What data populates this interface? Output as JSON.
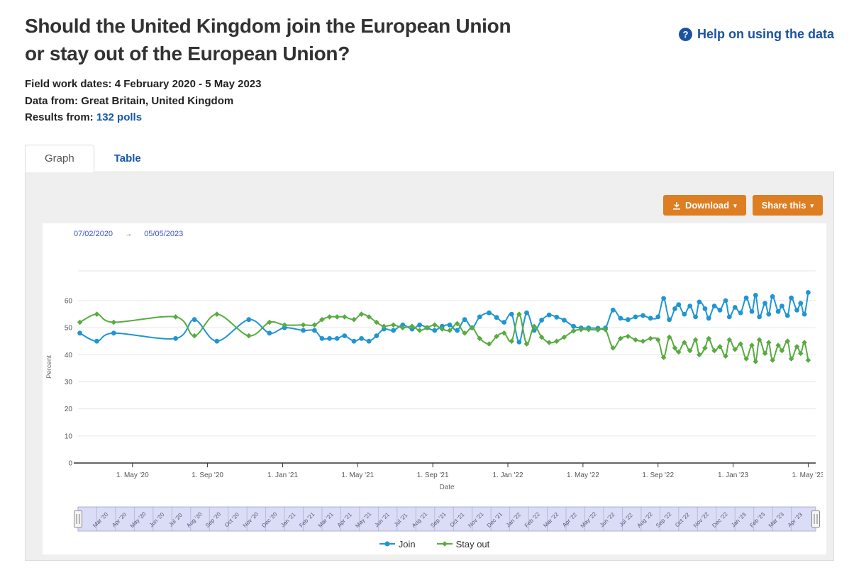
{
  "header": {
    "title_line1": "Should the United Kingdom join the European Union",
    "title_line2": "or stay out of the European Union?",
    "help_label": "Help on using the data",
    "help_icon_char": "?"
  },
  "meta": [
    {
      "label": "Field work dates:",
      "value": "4 February 2020 - 5 May 2023"
    },
    {
      "label": "Data from:",
      "value": "Great Britain, United Kingdom"
    },
    {
      "label": "Results from:",
      "link_text": "132 polls"
    }
  ],
  "tabs": [
    {
      "label": "Graph",
      "active": true
    },
    {
      "label": "Table",
      "active": false
    }
  ],
  "toolbar": {
    "download_label": "Download",
    "share_label": "Share this",
    "caret_char": "▾",
    "button_color": "#dd7e23"
  },
  "chart_header": {
    "from": "07/02/2020",
    "arrow": "→",
    "to": "05/05/2023"
  },
  "colors": {
    "link_blue": "#1558a6",
    "help_blue": "#1b53a0",
    "button_orange": "#dd7e23",
    "range_date_blue": "#3f51d1",
    "gridline": "#e6e6e6",
    "axis_line": "#333333"
  },
  "chart_data": {
    "type": "line",
    "title": "",
    "xlabel": "Date",
    "ylabel": "Percent",
    "ylim": [
      0,
      71
    ],
    "yticks": [
      0,
      10,
      20,
      30,
      40,
      50,
      60
    ],
    "x_is": "months since 4 Feb 2020",
    "xticks": [
      {
        "m": 2.9,
        "label": "1. May '20"
      },
      {
        "m": 6.9,
        "label": "1. Sep '20"
      },
      {
        "m": 10.9,
        "label": "1. Jan '21"
      },
      {
        "m": 14.9,
        "label": "1. May '21"
      },
      {
        "m": 18.9,
        "label": "1. Sep '21"
      },
      {
        "m": 22.9,
        "label": "1. Jan '22"
      },
      {
        "m": 26.9,
        "label": "1. May '22"
      },
      {
        "m": 30.9,
        "label": "1. Sep '22"
      },
      {
        "m": 34.9,
        "label": "1. Jan '23"
      },
      {
        "m": 38.9,
        "label": "1. May '23"
      }
    ],
    "x": [
      0.1,
      1.0,
      1.9,
      5.2,
      6.2,
      7.4,
      9.1,
      10.2,
      11.0,
      12.0,
      12.6,
      13.0,
      13.4,
      13.8,
      14.2,
      14.7,
      15.1,
      15.5,
      15.9,
      16.3,
      16.8,
      17.3,
      17.8,
      18.2,
      18.6,
      19.0,
      19.4,
      19.8,
      20.2,
      20.6,
      21.0,
      21.4,
      21.9,
      22.3,
      22.7,
      23.1,
      23.5,
      23.9,
      24.3,
      24.7,
      25.1,
      25.5,
      25.9,
      26.4,
      26.8,
      27.2,
      27.7,
      28.1,
      28.5,
      28.9,
      29.3,
      29.7,
      30.1,
      30.5,
      30.9,
      31.2,
      31.5,
      31.8,
      32.0,
      32.3,
      32.6,
      32.9,
      33.1,
      33.4,
      33.6,
      33.9,
      34.2,
      34.5,
      34.7,
      35.0,
      35.3,
      35.6,
      35.9,
      36.1,
      36.3,
      36.6,
      36.8,
      37.0,
      37.3,
      37.5,
      37.8,
      38.0,
      38.3,
      38.5,
      38.7,
      38.9
    ],
    "series": [
      {
        "name": "Join",
        "color": "#2095d3",
        "marker": "circle",
        "values": [
          48,
          45,
          48,
          46,
          53,
          45,
          53,
          48,
          50,
          49,
          49,
          46,
          46,
          46,
          47,
          45,
          46,
          45,
          47,
          49.5,
          49,
          51,
          49.5,
          51,
          50,
          49,
          50.5,
          51,
          49,
          53,
          50,
          54,
          55.5,
          53.8,
          52,
          55,
          44.7,
          55.5,
          49,
          52.8,
          54.7,
          53.9,
          52.8,
          50.5,
          49.9,
          49.9,
          49.8,
          49.9,
          56.5,
          53.5,
          53,
          54,
          54.5,
          53.5,
          54,
          60.8,
          53,
          57,
          58.5,
          55,
          58,
          54,
          59.5,
          57,
          53.5,
          58,
          56.5,
          60,
          54,
          57.5,
          55.5,
          61,
          56,
          62,
          54,
          59,
          55,
          61.5,
          56,
          58,
          54.5,
          61,
          56.5,
          59,
          55,
          63
        ]
      },
      {
        "name": "Stay out",
        "color": "#58ab40",
        "marker": "diamond",
        "values": [
          52,
          55,
          52,
          54,
          47,
          55,
          47,
          52,
          51,
          51,
          51,
          53,
          54,
          54,
          54,
          53,
          55,
          54,
          52,
          50.5,
          51,
          50,
          50.5,
          49,
          50,
          51,
          49.5,
          49,
          51.5,
          48,
          50,
          46,
          44,
          46.8,
          48,
          45,
          55,
          44,
          50.5,
          46.5,
          44.5,
          45,
          46.5,
          48.8,
          49.3,
          49.3,
          49.2,
          49.3,
          42.5,
          46,
          46.8,
          45.5,
          45,
          46,
          45.5,
          39,
          46.5,
          42.5,
          41,
          44.5,
          41.5,
          45.5,
          40,
          42.5,
          46,
          41.5,
          43,
          39.5,
          45.5,
          42,
          44,
          38.5,
          43.5,
          37.5,
          45.5,
          40.5,
          44.5,
          38,
          43.5,
          41.5,
          45,
          38.5,
          43,
          40.5,
          44.5,
          38
        ]
      }
    ],
    "legend_position": "bottom-center",
    "grid": true,
    "navigator": {
      "band_color": "#dbdcf5",
      "months": [
        "Mar '20",
        "Apr '20",
        "May '20",
        "Jun '20",
        "Jul '20",
        "Aug '20",
        "Sep '20",
        "Oct '20",
        "Nov '20",
        "Dec '20",
        "Jan '21",
        "Feb '21",
        "Mar '21",
        "Apr '21",
        "May '21",
        "Jun '21",
        "Jul '21",
        "Aug '21",
        "Sep '21",
        "Oct '21",
        "Nov '21",
        "Dec '21",
        "Jan '22",
        "Feb '22",
        "Mar '22",
        "Apr '22",
        "May '22",
        "Jun '22",
        "Jul '22",
        "Aug '22",
        "Sep '22",
        "Oct '22",
        "Nov '22",
        "Dec '22",
        "Jan '23",
        "Feb '23",
        "Mar '23",
        "Apr '23"
      ]
    }
  }
}
